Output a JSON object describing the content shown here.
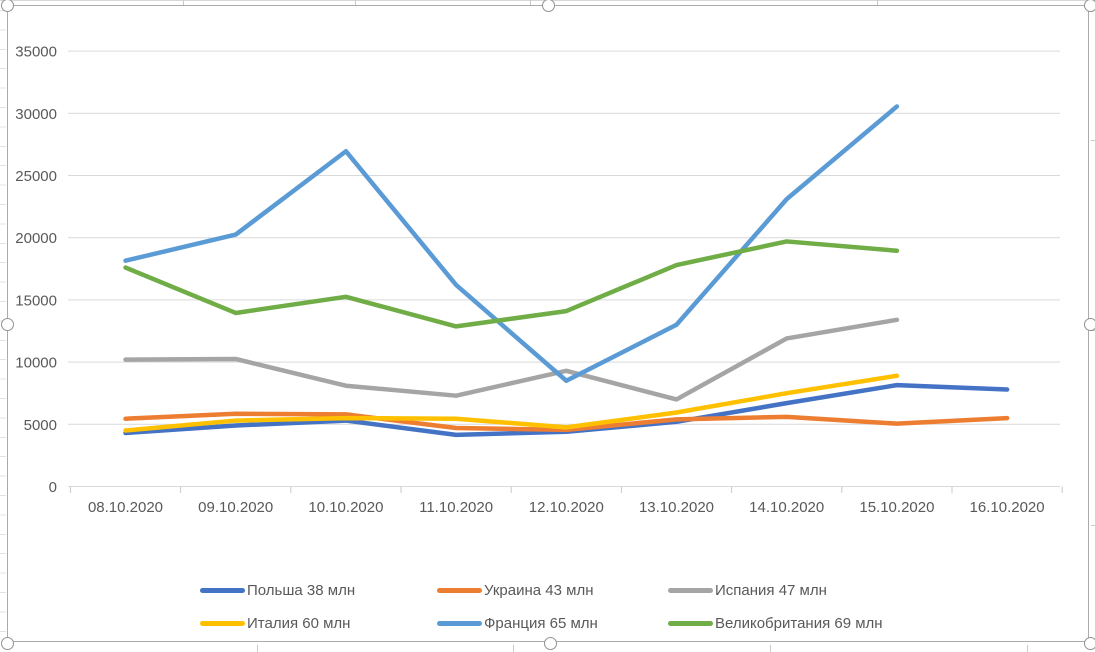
{
  "chart_data": {
    "type": "line",
    "title": "",
    "categories": [
      "08.10.2020",
      "09.10.2020",
      "10.10.2020",
      "11.10.2020",
      "12.10.2020",
      "13.10.2020",
      "14.10.2020",
      "15.10.2020",
      "16.10.2020"
    ],
    "series": [
      {
        "key": "polsha",
        "name": "Польша 38 млн",
        "color": "#4472C4",
        "values": [
          4300,
          4900,
          5300,
          4150,
          4400,
          5200,
          6700,
          8150,
          7800
        ]
      },
      {
        "key": "ukraina",
        "name": "Украина 43 млн",
        "color": "#ED7D31",
        "values": [
          5450,
          5850,
          5800,
          4700,
          4550,
          5400,
          5600,
          5050,
          5500
        ]
      },
      {
        "key": "ispaniya",
        "name": "Испания 47 млн",
        "color": "#A5A5A5",
        "values": [
          10200,
          10250,
          8100,
          7300,
          9300,
          7000,
          11900,
          13400,
          null
        ]
      },
      {
        "key": "italiya",
        "name": "Италия 60 млн",
        "color": "#FFC000",
        "values": [
          4500,
          5300,
          5500,
          5450,
          4750,
          5950,
          7500,
          8900,
          null
        ]
      },
      {
        "key": "frantsiya",
        "name": "Франция 65 млн",
        "color": "#5B9BD5",
        "values": [
          18150,
          20250,
          26950,
          16200,
          8500,
          13000,
          23100,
          30550,
          null
        ]
      },
      {
        "key": "velikobritaniya",
        "name": "Великобритания 69 млн",
        "color": "#70AD47",
        "values": [
          17600,
          13950,
          15250,
          12870,
          14100,
          17800,
          19700,
          18950,
          null
        ]
      }
    ],
    "ylim": [
      0,
      35000
    ],
    "ytick_step": 5000,
    "yticks": [
      "0",
      "5000",
      "10000",
      "15000",
      "20000",
      "25000",
      "30000",
      "35000"
    ],
    "grid": true,
    "legend_position": "bottom",
    "legend_layout": "2 rows x 3 columns"
  },
  "colors": {
    "axis_text": "#595959",
    "gridline": "#D9D9D9",
    "axis_tick": "#C9C9C9",
    "frame_border": "#ABABAB",
    "handle_border": "#919191",
    "background": "#FFFFFF"
  },
  "selection": {
    "state": "chart object selected",
    "handle_count": 8
  }
}
